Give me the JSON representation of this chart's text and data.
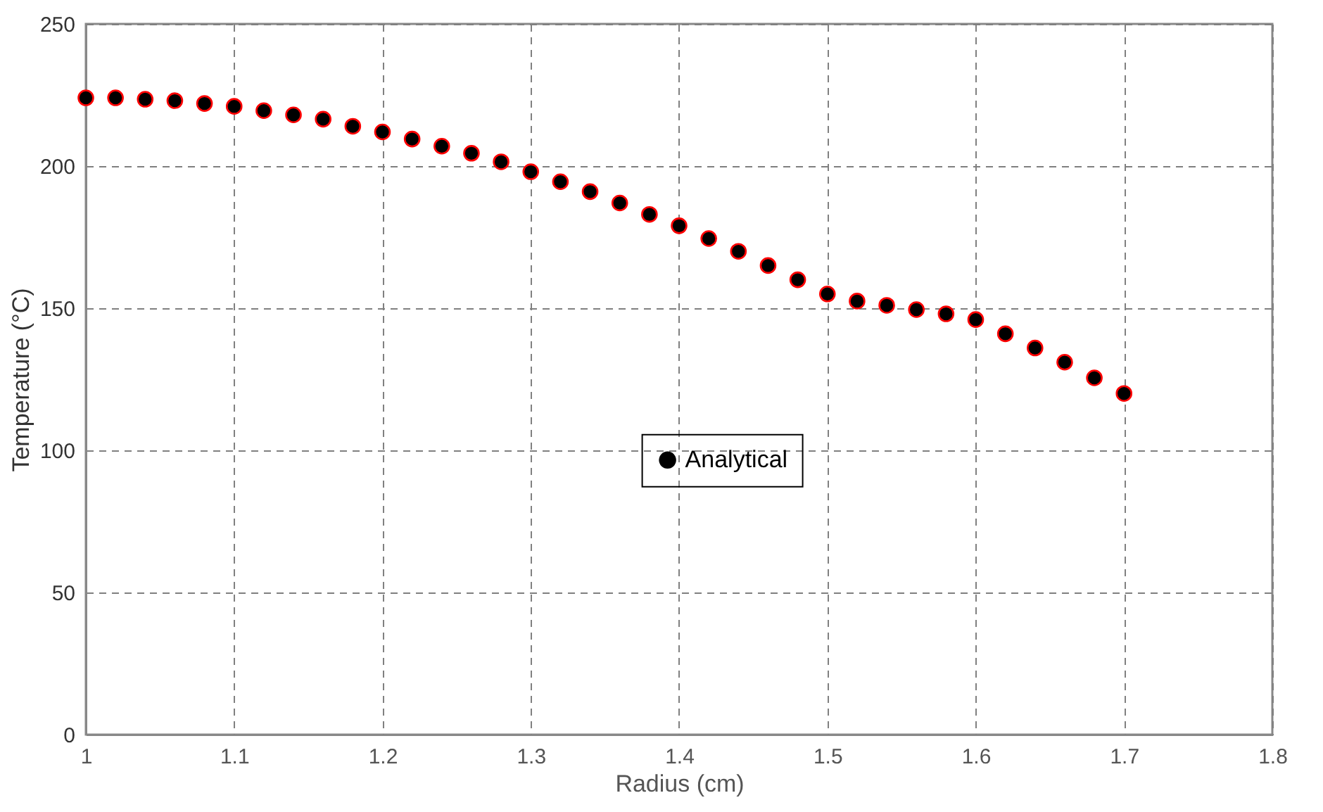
{
  "chart_data": {
    "type": "scatter",
    "xlabel": "Radius (cm)",
    "ylabel": "Temperature (°C)",
    "xlim": [
      1,
      1.8
    ],
    "xticks": [
      1,
      1.1,
      1.2,
      1.3,
      1.4,
      1.5,
      1.6,
      1.7,
      1.8
    ],
    "ylim": [
      0,
      250
    ],
    "yticks": [
      0,
      50,
      100,
      150,
      200,
      250
    ],
    "grid": true,
    "legend": "right",
    "marker": "circle",
    "x": [
      1.0,
      1.02,
      1.04,
      1.06,
      1.08,
      1.1,
      1.12,
      1.14,
      1.16,
      1.18,
      1.2,
      1.22,
      1.24,
      1.26,
      1.28,
      1.3,
      1.32,
      1.34,
      1.36,
      1.38,
      1.4,
      1.42,
      1.44,
      1.46,
      1.48,
      1.5,
      1.52,
      1.54,
      1.56,
      1.58,
      1.6,
      1.62,
      1.64,
      1.66,
      1.68,
      1.7
    ],
    "series": [
      {
        "name": "Analytical",
        "color": "#000000",
        "values": [
          224,
          224,
          223.5,
          223,
          222,
          221,
          219.5,
          218,
          216.5,
          214,
          212,
          209.5,
          207,
          204.5,
          201.5,
          198,
          194.5,
          191,
          187,
          183,
          179,
          174.5,
          170,
          165,
          160,
          155,
          152.5,
          151,
          149.5,
          148,
          146,
          141,
          136,
          131,
          125.5,
          120
        ]
      },
      {
        "color": "#ff0000",
        "values": [
          224,
          224,
          223.5,
          223,
          222,
          221,
          219.5,
          218,
          216.5,
          214,
          212,
          209.5,
          207,
          204.5,
          201.5,
          198,
          194.5,
          191,
          187,
          183,
          179,
          174.5,
          170,
          165,
          160,
          155,
          152.5,
          151,
          149.5,
          148,
          146,
          141,
          136,
          131,
          125.5,
          120
        ]
      }
    ]
  }
}
